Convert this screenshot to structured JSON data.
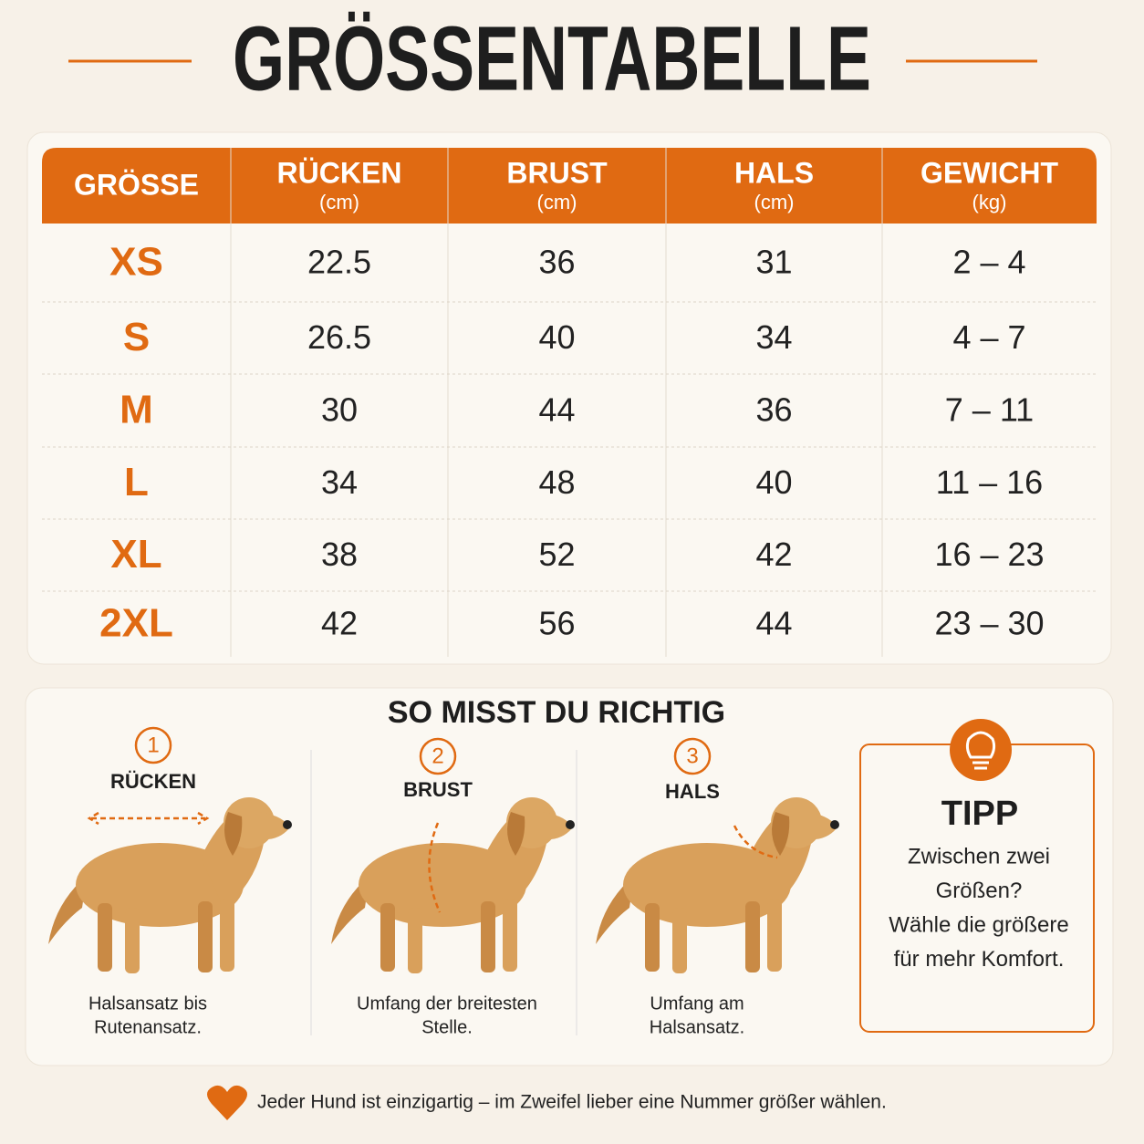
{
  "title": "GRÖSSENTABELLE",
  "table": {
    "header": [
      {
        "name": "GRÖSSE"
      },
      {
        "name": "RÜCKEN",
        "unit": "(cm)"
      },
      {
        "name": "BRUST",
        "unit": "(cm)"
      },
      {
        "name": "HALS",
        "unit": "(cm)"
      },
      {
        "name": "GEWICHT",
        "unit": "(kg)"
      }
    ],
    "rows": [
      [
        "XS",
        22.5,
        36,
        31,
        "2 – 4"
      ],
      [
        "S",
        26.5,
        40,
        34,
        "4 – 7"
      ],
      [
        "M",
        30,
        44,
        36,
        "7 – 11"
      ],
      [
        "L",
        34,
        48,
        40,
        "11 – 16"
      ],
      [
        "XL",
        38,
        52,
        42,
        "16 – 23"
      ],
      [
        "2XL",
        42,
        56,
        44,
        "23 – 30"
      ]
    ]
  },
  "measure": {
    "title": "SO MISST DU RICHTIG",
    "steps": [
      {
        "number": 1,
        "label": "RÜCKEN",
        "text": [
          "Halsansatz bis",
          "Rutenansatz."
        ]
      },
      {
        "number": 2,
        "label": "BRUST",
        "text": [
          "Umfang der breitesten",
          "Stelle."
        ]
      },
      {
        "number": 3,
        "label": "HALS",
        "text": [
          "Umfang am",
          "Halsansatz."
        ]
      }
    ],
    "tip": {
      "title": "TIPP",
      "text": [
        "Zwischen zwei",
        "Größen?",
        "Wähle die größere",
        "für mehr Komfort."
      ]
    }
  },
  "footer": "Jeder Hund ist einzigartig – im Zweifel lieber eine Nummer größer wählen."
}
